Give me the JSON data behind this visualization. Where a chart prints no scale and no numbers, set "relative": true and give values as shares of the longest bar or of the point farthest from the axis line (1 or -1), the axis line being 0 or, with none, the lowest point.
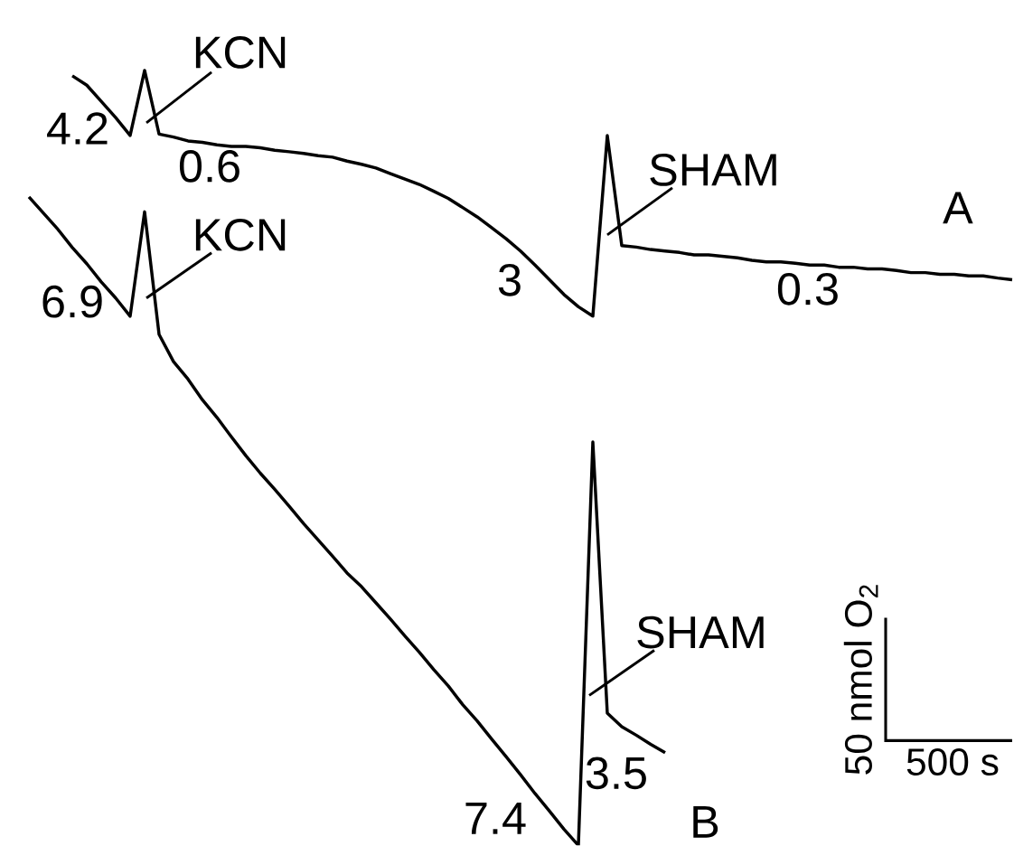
{
  "chart_data": [
    {
      "type": "line",
      "relative": true,
      "marker": "none",
      "line_style": "solid",
      "categories": [
        null,
        null,
        null,
        null,
        null,
        null,
        null,
        null,
        null,
        null,
        null,
        null,
        null,
        null,
        null,
        null,
        null,
        null,
        null,
        null,
        null,
        null,
        null,
        null,
        null,
        null,
        null,
        null,
        null,
        null,
        null,
        null,
        null,
        null,
        null,
        null,
        null,
        null,
        null,
        null,
        null,
        null,
        null,
        null,
        null,
        null,
        null,
        null,
        null,
        null,
        null,
        null,
        null,
        null,
        null,
        null,
        null,
        null,
        null,
        null,
        null,
        null,
        null,
        null,
        null,
        null
      ],
      "series": [
        {
          "color": "#000000",
          "values": [
            0.978,
            0.94,
            0.874,
            0.808,
            0.735,
            1,
            0.741,
            0.729,
            0.713,
            0.707,
            0.697,
            0.691,
            0.691,
            0.685,
            0.675,
            0.669,
            0.662,
            0.653,
            0.647,
            0.631,
            0.618,
            0.603,
            0.58,
            0.558,
            0.536,
            0.508,
            0.479,
            0.442,
            0.404,
            0.36,
            0.315,
            0.265,
            0.208,
            0.148,
            0.088,
            0.038,
            0,
            0.735,
            0.287,
            0.281,
            0.271,
            0.265,
            0.259,
            0.249,
            0.249,
            0.243,
            0.237,
            0.227,
            0.221,
            0.221,
            0.215,
            0.208,
            0.208,
            0.199,
            0.199,
            0.192,
            0.192,
            0.186,
            0.177,
            0.177,
            0.17,
            0.17,
            0.164,
            0.164,
            0.155,
            0.148
          ]
        }
      ],
      "annotations": [
        "4.2",
        "KCN",
        "0.6",
        "3",
        "SHAM",
        "A",
        "0.3"
      ]
    },
    {
      "type": "line",
      "relative": true,
      "marker": "none",
      "line_style": "solid",
      "categories": [
        null,
        null,
        null,
        null,
        null,
        null,
        null,
        null,
        null,
        null,
        null,
        null,
        null,
        null,
        null,
        null,
        null,
        null,
        null,
        null,
        null,
        null,
        null,
        null,
        null,
        null,
        null,
        null,
        null,
        null,
        null,
        null,
        null,
        null,
        null,
        null,
        null,
        null,
        null,
        null,
        null,
        null,
        null,
        null,
        null
      ],
      "series": [
        {
          "color": "#000000",
          "values": [
            1,
            0.975,
            0.95,
            0.922,
            0.897,
            0.869,
            0.844,
            0.816,
            0.977,
            0.788,
            0.746,
            0.719,
            0.687,
            0.66,
            0.63,
            0.601,
            0.574,
            0.549,
            0.523,
            0.496,
            0.471,
            0.446,
            0.42,
            0.399,
            0.374,
            0.349,
            0.323,
            0.298,
            0.271,
            0.246,
            0.217,
            0.192,
            0.164,
            0.137,
            0.109,
            0.08,
            0.053,
            0.025,
            0,
            0.622,
            0.204,
            0.183,
            0.17,
            0.156,
            0.143
          ]
        }
      ],
      "annotations": [
        "6.9",
        "KCN",
        "SHAM",
        "3.5",
        "7.4",
        "B",
        "50 nmol O$_{2}$",
        "500 s"
      ]
    }
  ]
}
